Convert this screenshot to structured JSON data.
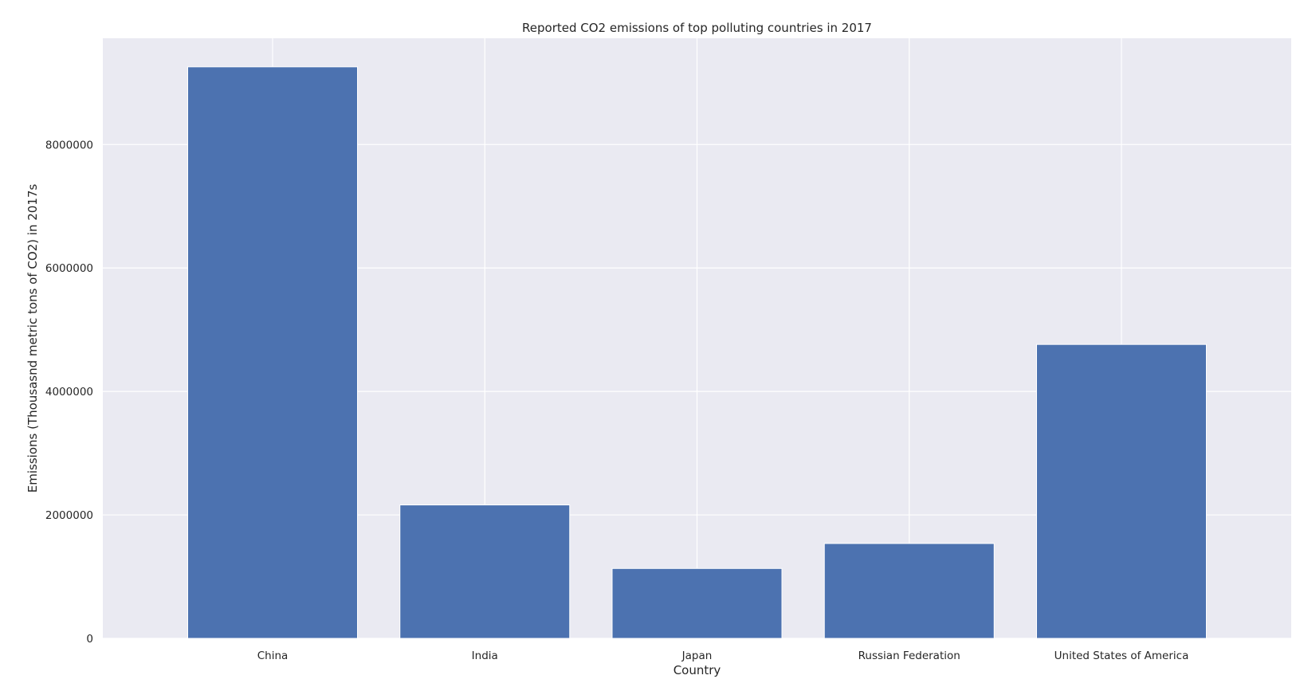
{
  "chart_data": {
    "type": "bar",
    "title": "Reported CO2 emissions of top polluting countries in 2017",
    "xlabel": "Country",
    "ylabel": "Emissions (Thousasnd metric tons of CO2) in 2017s",
    "categories": [
      "China",
      "India",
      "Japan",
      "Russian Federation",
      "United States of America"
    ],
    "values": [
      9257934,
      2161567,
      1132435,
      1536881,
      4761302
    ],
    "ylim": [
      0,
      9720831
    ],
    "yticks": [
      0,
      2000000,
      4000000,
      6000000,
      8000000
    ],
    "ytick_labels": [
      "0",
      "2000000",
      "4000000",
      "6000000",
      "8000000"
    ],
    "grid": true,
    "colors": {
      "bar": "#4c72b0",
      "plot_background": "#eaeaf2",
      "grid": "#ffffff",
      "text": "#262626"
    }
  }
}
